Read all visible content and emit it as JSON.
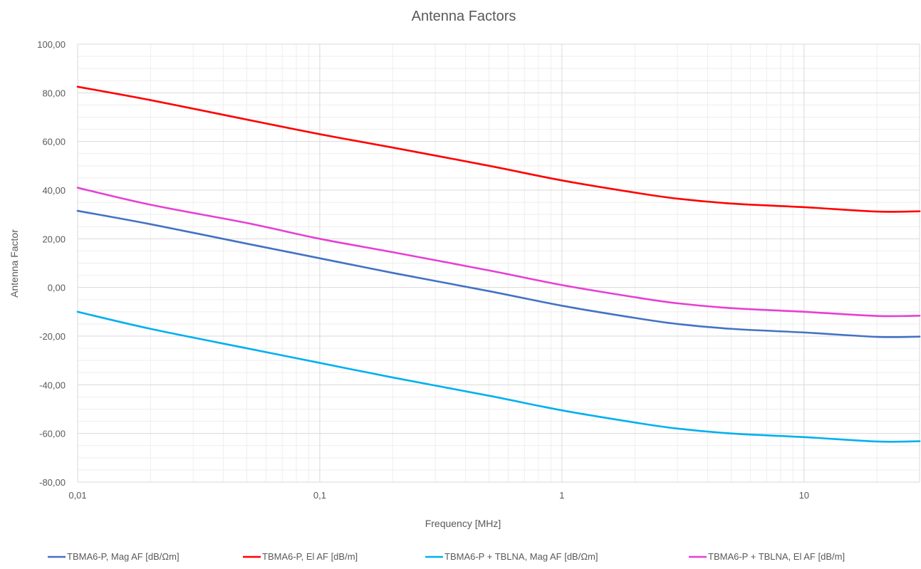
{
  "chart_data": {
    "type": "line",
    "title": "Antenna Factors",
    "xlabel": "Frequency [MHz]",
    "ylabel": "Antenna Factor",
    "x_scale": "log",
    "xlim": [
      0.01,
      30
    ],
    "ylim": [
      -80,
      100
    ],
    "x_ticks": [
      {
        "value": 0.01,
        "label": "0,01"
      },
      {
        "value": 0.1,
        "label": "0,1"
      },
      {
        "value": 1,
        "label": "1"
      },
      {
        "value": 10,
        "label": "10"
      }
    ],
    "y_ticks": [
      {
        "value": 100,
        "label": "100,00"
      },
      {
        "value": 80,
        "label": "80,00"
      },
      {
        "value": 60,
        "label": "60,00"
      },
      {
        "value": 40,
        "label": "40,00"
      },
      {
        "value": 20,
        "label": "20,00"
      },
      {
        "value": 0,
        "label": "0,00"
      },
      {
        "value": -20,
        "label": "-20,00"
      },
      {
        "value": -40,
        "label": "-40,00"
      },
      {
        "value": -60,
        "label": "-60,00"
      },
      {
        "value": -80,
        "label": "-80,00"
      }
    ],
    "grid": "major and minor",
    "legend_position": "bottom",
    "series": [
      {
        "name": "TBMA6-P, Mag AF [dB/Ωm]",
        "color": "#4472C4",
        "points": [
          [
            0.01,
            31.5
          ],
          [
            0.02,
            26
          ],
          [
            0.05,
            18
          ],
          [
            0.1,
            12
          ],
          [
            0.2,
            6
          ],
          [
            0.5,
            -1.5
          ],
          [
            1,
            -7.5
          ],
          [
            2,
            -12.5
          ],
          [
            3,
            -15
          ],
          [
            5,
            -17
          ],
          [
            10,
            -18.5
          ],
          [
            20,
            -20.3
          ],
          [
            30,
            -20.2
          ]
        ]
      },
      {
        "name": "TBMA6-P, El AF [dB/m]",
        "color": "#FF0000",
        "points": [
          [
            0.01,
            82.5
          ],
          [
            0.02,
            77
          ],
          [
            0.05,
            69
          ],
          [
            0.1,
            63
          ],
          [
            0.2,
            57.5
          ],
          [
            0.5,
            50
          ],
          [
            1,
            44
          ],
          [
            2,
            39
          ],
          [
            3,
            36.5
          ],
          [
            5,
            34.5
          ],
          [
            10,
            33
          ],
          [
            20,
            31.2
          ],
          [
            30,
            31.3
          ]
        ]
      },
      {
        "name": "TBMA6-P + TBLNA, Mag AF [dB/Ωm]",
        "color": "#00B0F0",
        "points": [
          [
            0.01,
            -10
          ],
          [
            0.02,
            -17
          ],
          [
            0.05,
            -25
          ],
          [
            0.1,
            -31
          ],
          [
            0.2,
            -37
          ],
          [
            0.5,
            -44.5
          ],
          [
            1,
            -50.5
          ],
          [
            2,
            -55.5
          ],
          [
            3,
            -58
          ],
          [
            5,
            -60
          ],
          [
            10,
            -61.5
          ],
          [
            20,
            -63.3
          ],
          [
            30,
            -63.2
          ]
        ]
      },
      {
        "name": "TBMA6-P + TBLNA, El AF [dB/m]",
        "color": "#E83FD4",
        "points": [
          [
            0.01,
            41
          ],
          [
            0.02,
            34
          ],
          [
            0.05,
            26.5
          ],
          [
            0.1,
            20
          ],
          [
            0.2,
            14.5
          ],
          [
            0.5,
            7
          ],
          [
            1,
            1
          ],
          [
            2,
            -4
          ],
          [
            3,
            -6.5
          ],
          [
            5,
            -8.5
          ],
          [
            10,
            -10
          ],
          [
            20,
            -11.7
          ],
          [
            30,
            -11.6
          ]
        ]
      }
    ]
  }
}
